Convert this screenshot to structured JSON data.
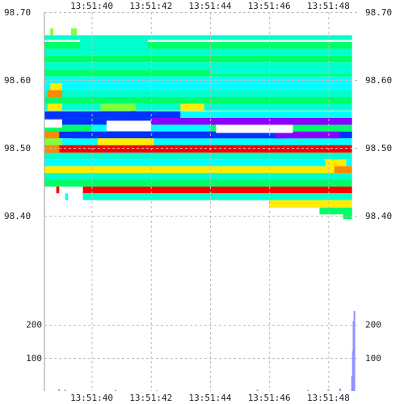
{
  "chart_data": {
    "type": "heatmap",
    "title": "",
    "xlabel": "",
    "ylabel": "",
    "x_ticks": [
      "13:51:40",
      "13:51:42",
      "13:51:44",
      "13:51:46",
      "13:51:48"
    ],
    "x_tick_seconds": [
      40,
      42,
      44,
      46,
      48
    ],
    "x_range_seconds": [
      38.4,
      49.0
    ],
    "price_ticks": [
      "98.70",
      "98.60",
      "98.50",
      "98.40"
    ],
    "price_range": [
      98.325,
      98.7
    ],
    "volume_ticks": [
      "200",
      "100"
    ],
    "volume_range": [
      0,
      240
    ],
    "grid": true,
    "colors": {
      "red": "#ff0000",
      "orange": "#ff8800",
      "yellow": "#ffee00",
      "lightgreen": "#80ff40",
      "green": "#00ff66",
      "cyan": "#00ffff",
      "teal": "#00ffcc",
      "blue": "#0033ff",
      "purple": "#8800ff",
      "volume": "#9090ff"
    },
    "bands": [
      {
        "start": 38.4,
        "end": 48.8,
        "low": 98.659,
        "high": 98.666,
        "color": "teal"
      },
      {
        "start": 38.4,
        "end": 48.8,
        "low": 98.646,
        "high": 98.656,
        "color": "green"
      },
      {
        "start": 38.4,
        "end": 48.8,
        "low": 98.636,
        "high": 98.646,
        "color": "teal"
      },
      {
        "start": 38.4,
        "end": 48.8,
        "low": 98.626,
        "high": 98.636,
        "color": "green"
      },
      {
        "start": 38.4,
        "end": 48.8,
        "low": 98.615,
        "high": 98.626,
        "color": "teal"
      },
      {
        "start": 38.4,
        "end": 48.8,
        "low": 98.605,
        "high": 98.615,
        "color": "green"
      },
      {
        "start": 38.4,
        "end": 48.8,
        "low": 98.595,
        "high": 98.605,
        "color": "cyan"
      },
      {
        "start": 38.4,
        "end": 48.8,
        "low": 98.585,
        "high": 98.595,
        "color": "cyan"
      },
      {
        "start": 38.4,
        "end": 48.8,
        "low": 98.575,
        "high": 98.585,
        "color": "teal"
      },
      {
        "start": 38.4,
        "end": 48.8,
        "low": 98.565,
        "high": 98.575,
        "color": "green"
      },
      {
        "start": 38.4,
        "end": 48.8,
        "low": 98.555,
        "high": 98.565,
        "color": "teal"
      },
      {
        "start": 38.4,
        "end": 43.0,
        "low": 98.544,
        "high": 98.554,
        "color": "blue"
      },
      {
        "start": 43.0,
        "end": 48.8,
        "low": 98.544,
        "high": 98.554,
        "color": "cyan"
      },
      {
        "start": 38.4,
        "end": 42.0,
        "low": 98.534,
        "high": 98.544,
        "color": "blue"
      },
      {
        "start": 42.0,
        "end": 48.8,
        "low": 98.534,
        "high": 98.544,
        "color": "purple"
      },
      {
        "start": 38.4,
        "end": 48.8,
        "low": 98.524,
        "high": 98.534,
        "color": "green"
      },
      {
        "start": 38.4,
        "end": 48.8,
        "low": 98.514,
        "high": 98.524,
        "color": "blue"
      },
      {
        "start": 38.4,
        "end": 48.8,
        "low": 98.504,
        "high": 98.514,
        "color": "cyan"
      },
      {
        "start": 38.4,
        "end": 48.8,
        "low": 98.493,
        "high": 98.504,
        "color": "red"
      },
      {
        "start": 38.4,
        "end": 48.8,
        "low": 98.483,
        "high": 98.493,
        "color": "teal"
      },
      {
        "start": 38.4,
        "end": 48.8,
        "low": 98.473,
        "high": 98.483,
        "color": "cyan"
      },
      {
        "start": 38.4,
        "end": 48.8,
        "low": 98.463,
        "high": 98.473,
        "color": "yellow"
      },
      {
        "start": 38.4,
        "end": 48.8,
        "low": 98.453,
        "high": 98.463,
        "color": "teal"
      },
      {
        "start": 38.4,
        "end": 48.8,
        "low": 98.443,
        "high": 98.453,
        "color": "green"
      },
      {
        "start": 39.7,
        "end": 48.8,
        "low": 98.433,
        "high": 98.443,
        "color": "red"
      },
      {
        "start": 39.7,
        "end": 48.8,
        "low": 98.423,
        "high": 98.433,
        "color": "teal"
      },
      {
        "start": 46.0,
        "end": 48.8,
        "low": 98.412,
        "high": 98.423,
        "color": "yellow"
      },
      {
        "start": 47.7,
        "end": 48.8,
        "low": 98.402,
        "high": 98.412,
        "color": "green"
      }
    ],
    "patches": [
      {
        "start": 38.6,
        "end": 38.7,
        "low": 98.666,
        "high": 98.676,
        "color": "lightgreen"
      },
      {
        "start": 39.3,
        "end": 39.5,
        "low": 98.666,
        "high": 98.676,
        "color": "lightgreen"
      },
      {
        "start": 39.6,
        "end": 41.9,
        "low": 98.64,
        "high": 98.659,
        "color": "teal"
      },
      {
        "start": 44.0,
        "end": 48.8,
        "low": 98.608,
        "high": 98.62,
        "color": "teal"
      },
      {
        "start": 38.5,
        "end": 39.0,
        "low": 98.575,
        "high": 98.585,
        "color": "orange"
      },
      {
        "start": 38.6,
        "end": 39.0,
        "low": 98.585,
        "high": 98.595,
        "color": "yellow"
      },
      {
        "start": 38.5,
        "end": 39.0,
        "low": 98.555,
        "high": 98.565,
        "color": "yellow"
      },
      {
        "start": 40.3,
        "end": 41.5,
        "low": 98.554,
        "high": 98.565,
        "color": "lightgreen"
      },
      {
        "start": 41.3,
        "end": 42.1,
        "low": 98.544,
        "high": 98.554,
        "color": "blue"
      },
      {
        "start": 43.0,
        "end": 43.8,
        "low": 98.555,
        "high": 98.565,
        "color": "yellow"
      },
      {
        "start": 40.0,
        "end": 44.0,
        "low": 98.524,
        "high": 98.534,
        "color": "cyan"
      },
      {
        "start": 44.3,
        "end": 48.1,
        "low": 98.534,
        "high": 98.544,
        "color": "purple"
      },
      {
        "start": 39.3,
        "end": 46.5,
        "low": 98.514,
        "high": 98.524,
        "color": "blue"
      },
      {
        "start": 46.2,
        "end": 48.4,
        "low": 98.514,
        "high": 98.524,
        "color": "purple"
      },
      {
        "start": 38.4,
        "end": 38.9,
        "low": 98.493,
        "high": 98.524,
        "color": "orange"
      },
      {
        "start": 40.2,
        "end": 42.1,
        "low": 98.504,
        "high": 98.514,
        "color": "yellow"
      },
      {
        "start": 38.4,
        "end": 39.0,
        "low": 98.504,
        "high": 98.514,
        "color": "lightgreen"
      },
      {
        "start": 47.9,
        "end": 48.6,
        "low": 98.473,
        "high": 98.483,
        "color": "yellow"
      },
      {
        "start": 48.2,
        "end": 48.8,
        "low": 98.463,
        "high": 98.473,
        "color": "orange"
      },
      {
        "start": 39.1,
        "end": 39.2,
        "low": 98.423,
        "high": 98.433,
        "color": "cyan"
      },
      {
        "start": 38.8,
        "end": 38.9,
        "low": 98.433,
        "high": 98.443,
        "color": "red"
      },
      {
        "start": 48.5,
        "end": 48.8,
        "low": 98.395,
        "high": 98.405,
        "color": "green"
      }
    ],
    "white_gaps": [
      {
        "start": 40.0,
        "end": 40.3,
        "low": 98.666,
        "high": 98.676
      },
      {
        "start": 38.4,
        "end": 39.0,
        "low": 98.53,
        "high": 98.542
      },
      {
        "start": 40.5,
        "end": 42.0,
        "low": 98.525,
        "high": 98.54
      },
      {
        "start": 44.2,
        "end": 46.8,
        "low": 98.522,
        "high": 98.534
      }
    ],
    "volume": [
      {
        "x": 38.9,
        "v": 6
      },
      {
        "x": 39.1,
        "v": 4
      },
      {
        "x": 40.8,
        "v": 3
      },
      {
        "x": 42.2,
        "v": 2
      },
      {
        "x": 45.6,
        "v": 4
      },
      {
        "x": 47.3,
        "v": 3
      },
      {
        "x": 48.0,
        "v": 5
      },
      {
        "x": 48.4,
        "v": 8
      },
      {
        "x": 48.8,
        "v": 45
      },
      {
        "x": 48.83,
        "v": 120
      },
      {
        "x": 48.85,
        "v": 210
      },
      {
        "x": 48.88,
        "v": 240
      }
    ]
  }
}
